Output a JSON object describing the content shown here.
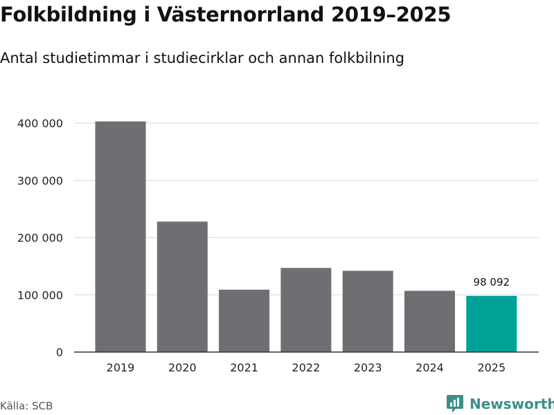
{
  "header": {
    "title": "Folkbildning i Västernorrland 2019–2025",
    "subtitle": "Antal studietimmar i studiecirklar och annan folkbilning"
  },
  "footer": {
    "source": "Källa: SCB",
    "brand": "Newsworthy"
  },
  "colors": {
    "bar": "#6f6e73",
    "highlight": "#00a196",
    "grid": "#dddddd",
    "axis": "#333333",
    "brand": "#3b8f8a"
  },
  "chart_data": {
    "type": "bar",
    "title": "Folkbildning i Västernorrland 2019–2025",
    "subtitle": "Antal studietimmar i studiecirklar och annan folkbilning",
    "xlabel": "",
    "ylabel": "",
    "categories": [
      "2019",
      "2020",
      "2021",
      "2022",
      "2023",
      "2024",
      "2025"
    ],
    "values": [
      403000,
      228000,
      109000,
      147000,
      142000,
      107000,
      98092
    ],
    "highlight_index": 6,
    "data_labels": [
      {
        "index": 6,
        "text": "98 092"
      }
    ],
    "ylim": [
      0,
      400000
    ],
    "yticks": [
      0,
      100000,
      200000,
      300000,
      400000
    ],
    "ytick_labels": [
      "0",
      "100 000",
      "200 000",
      "300 000",
      "400 000"
    ],
    "grid": true,
    "legend": "none"
  }
}
